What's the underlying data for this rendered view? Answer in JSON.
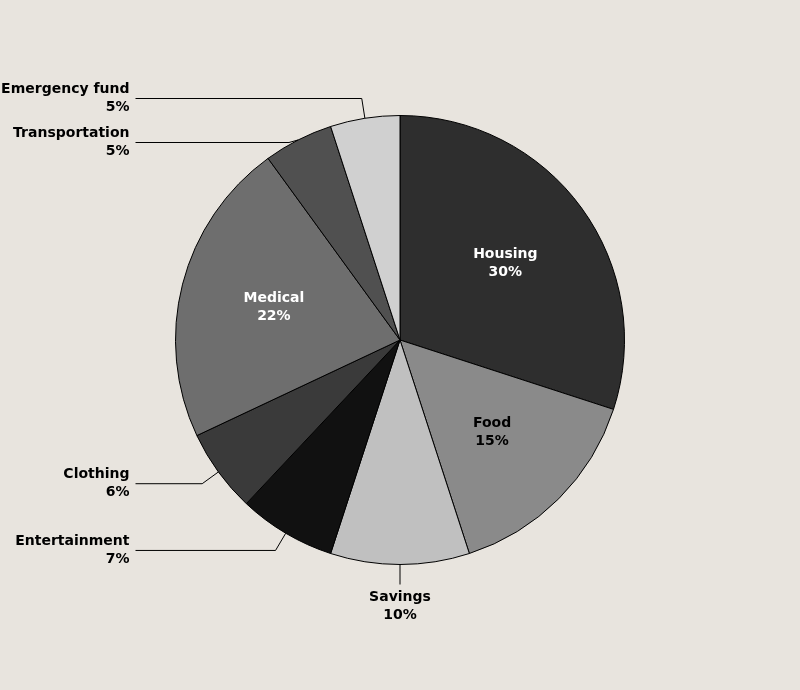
{
  "chart_data": {
    "type": "pie",
    "categories": [
      "Housing",
      "Food",
      "Savings",
      "Entertainment",
      "Clothing",
      "Medical",
      "Transportation",
      "Emergency fund"
    ],
    "values": [
      30,
      15,
      10,
      7,
      6,
      22,
      5,
      5
    ],
    "value_labels": [
      "30%",
      "15%",
      "10%",
      "7%",
      "6%",
      "22%",
      "5%",
      "5%"
    ],
    "colors": [
      "#2e2e2e",
      "#8a8a8a",
      "#c0c0c0",
      "#111111",
      "#3a3a3a",
      "#6e6e6e",
      "#505050",
      "#d0d0d0"
    ],
    "data_labels": true
  }
}
